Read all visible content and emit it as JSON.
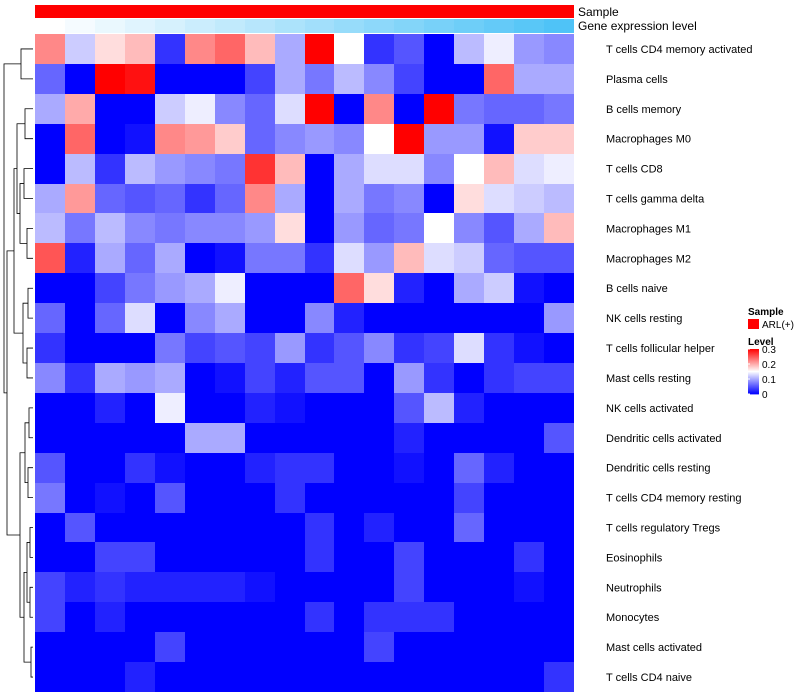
{
  "chart_data": {
    "type": "heatmap",
    "title": "",
    "annotation_tracks": [
      {
        "name": "Sample",
        "kind": "categorical"
      },
      {
        "name": "Gene expression level",
        "kind": "gradient"
      }
    ],
    "legend": {
      "placement": "right",
      "sample_title": "Sample",
      "sample_entries": [
        {
          "label": "ARL(+)",
          "color": "#ff0000"
        }
      ],
      "level_title": "Level",
      "level_ticks": [
        0.3,
        0.2,
        0.1,
        0
      ],
      "level_tick_labels": [
        "0.3",
        "0.2",
        "0.1",
        "0"
      ]
    },
    "colors": {
      "low": "#0000ff",
      "mid": "#ffffff",
      "high": "#ff0000"
    },
    "value_range": [
      0,
      0.3
    ],
    "columns": 18,
    "rows": [
      "T cells CD4 memory activated",
      "Plasma cells",
      "B cells memory",
      "Macrophages M0",
      "T cells CD8",
      "T cells gamma delta",
      "Macrophages M1",
      "Macrophages M2",
      "B cells naive",
      "NK cells resting",
      "T cells follicular helper",
      "Mast cells resting",
      "NK cells activated",
      "Dendritic cells activated",
      "Dendritic cells resting",
      "T cells CD4 memory resting",
      "T cells regulatory  Tregs",
      "Eosinophils",
      "Neutrophils",
      "Monocytes",
      "Mast cells activated",
      "T cells CD4 naive"
    ],
    "values": [
      [
        0.22,
        0.12,
        0.17,
        0.19,
        0.03,
        0.22,
        0.24,
        0.19,
        0.1,
        0.3,
        0.15,
        0.03,
        0.05,
        0.0,
        0.11,
        0.14,
        0.09,
        0.08
      ],
      [
        0.06,
        0.0,
        0.3,
        0.29,
        0.0,
        0.0,
        0.0,
        0.04,
        0.1,
        0.07,
        0.11,
        0.08,
        0.04,
        0.0,
        0.0,
        0.24,
        0.1,
        0.1
      ],
      [
        0.1,
        0.2,
        0.0,
        0.0,
        0.12,
        0.14,
        0.08,
        0.06,
        0.13,
        0.3,
        0.0,
        0.22,
        0.0,
        0.3,
        0.07,
        0.06,
        0.06,
        0.07
      ],
      [
        0.0,
        0.24,
        0.0,
        0.01,
        0.22,
        0.21,
        0.18,
        0.06,
        0.08,
        0.09,
        0.08,
        0.15,
        0.3,
        0.09,
        0.09,
        0.01,
        0.18,
        0.18
      ],
      [
        0.0,
        0.11,
        0.03,
        0.11,
        0.09,
        0.08,
        0.07,
        0.27,
        0.19,
        0.0,
        0.1,
        0.13,
        0.13,
        0.08,
        0.15,
        0.19,
        0.13,
        0.14
      ],
      [
        0.1,
        0.21,
        0.06,
        0.05,
        0.06,
        0.03,
        0.06,
        0.22,
        0.1,
        0.0,
        0.1,
        0.07,
        0.08,
        0.0,
        0.17,
        0.13,
        0.12,
        0.11
      ],
      [
        0.11,
        0.07,
        0.11,
        0.08,
        0.07,
        0.08,
        0.08,
        0.09,
        0.17,
        0.0,
        0.09,
        0.06,
        0.07,
        0.15,
        0.08,
        0.05,
        0.1,
        0.19
      ],
      [
        0.25,
        0.02,
        0.1,
        0.06,
        0.1,
        0.0,
        0.01,
        0.07,
        0.07,
        0.03,
        0.13,
        0.09,
        0.19,
        0.13,
        0.12,
        0.06,
        0.05,
        0.05
      ],
      [
        0.0,
        0.0,
        0.04,
        0.07,
        0.09,
        0.1,
        0.14,
        0.0,
        0.0,
        0.0,
        0.24,
        0.17,
        0.02,
        0.0,
        0.1,
        0.12,
        0.01,
        0.0
      ],
      [
        0.06,
        0.0,
        0.06,
        0.13,
        0.0,
        0.08,
        0.1,
        0.0,
        0.0,
        0.08,
        0.02,
        0.0,
        0.0,
        0.0,
        0.0,
        0.0,
        0.0,
        0.09
      ],
      [
        0.03,
        0.0,
        0.0,
        0.0,
        0.07,
        0.04,
        0.05,
        0.04,
        0.09,
        0.03,
        0.05,
        0.08,
        0.03,
        0.04,
        0.13,
        0.03,
        0.01,
        0.0
      ],
      [
        0.08,
        0.03,
        0.1,
        0.09,
        0.1,
        0.0,
        0.01,
        0.04,
        0.02,
        0.05,
        0.05,
        0.0,
        0.09,
        0.03,
        0.0,
        0.03,
        0.04,
        0.04
      ],
      [
        0.0,
        0.0,
        0.02,
        0.0,
        0.14,
        0.0,
        0.0,
        0.02,
        0.01,
        0.0,
        0.0,
        0.0,
        0.05,
        0.11,
        0.02,
        0.0,
        0.0,
        0.0
      ],
      [
        0.0,
        0.0,
        0.0,
        0.0,
        0.0,
        0.1,
        0.1,
        0.0,
        0.0,
        0.0,
        0.0,
        0.0,
        0.02,
        0.0,
        0.0,
        0.0,
        0.0,
        0.05
      ],
      [
        0.05,
        0.0,
        0.0,
        0.03,
        0.01,
        0.0,
        0.0,
        0.02,
        0.03,
        0.03,
        0.0,
        0.0,
        0.01,
        0.0,
        0.06,
        0.02,
        0.0,
        0.0
      ],
      [
        0.07,
        0.0,
        0.01,
        0.0,
        0.05,
        0.0,
        0.0,
        0.0,
        0.03,
        0.0,
        0.0,
        0.0,
        0.0,
        0.0,
        0.04,
        0.0,
        0.0,
        0.0
      ],
      [
        0.0,
        0.05,
        0.0,
        0.0,
        0.0,
        0.0,
        0.0,
        0.0,
        0.0,
        0.03,
        0.0,
        0.02,
        0.0,
        0.0,
        0.06,
        0.0,
        0.0,
        0.0
      ],
      [
        0.0,
        0.0,
        0.04,
        0.04,
        0.0,
        0.0,
        0.0,
        0.0,
        0.0,
        0.03,
        0.0,
        0.0,
        0.04,
        0.0,
        0.0,
        0.0,
        0.03,
        0.0
      ],
      [
        0.04,
        0.02,
        0.03,
        0.02,
        0.02,
        0.02,
        0.02,
        0.01,
        0.0,
        0.0,
        0.0,
        0.0,
        0.04,
        0.0,
        0.0,
        0.0,
        0.01,
        0.0
      ],
      [
        0.04,
        0.0,
        0.02,
        0.0,
        0.0,
        0.0,
        0.0,
        0.0,
        0.0,
        0.03,
        0.0,
        0.03,
        0.03,
        0.03,
        0.0,
        0.0,
        0.0,
        0.0
      ],
      [
        0.0,
        0.0,
        0.0,
        0.0,
        0.04,
        0.0,
        0.0,
        0.0,
        0.0,
        0.0,
        0.0,
        0.04,
        0.0,
        0.0,
        0.0,
        0.0,
        0.0,
        0.0
      ],
      [
        0.0,
        0.0,
        0.0,
        0.02,
        0.0,
        0.0,
        0.0,
        0.0,
        0.0,
        0.0,
        0.0,
        0.0,
        0.0,
        0.0,
        0.0,
        0.0,
        0.0,
        0.03
      ]
    ]
  }
}
